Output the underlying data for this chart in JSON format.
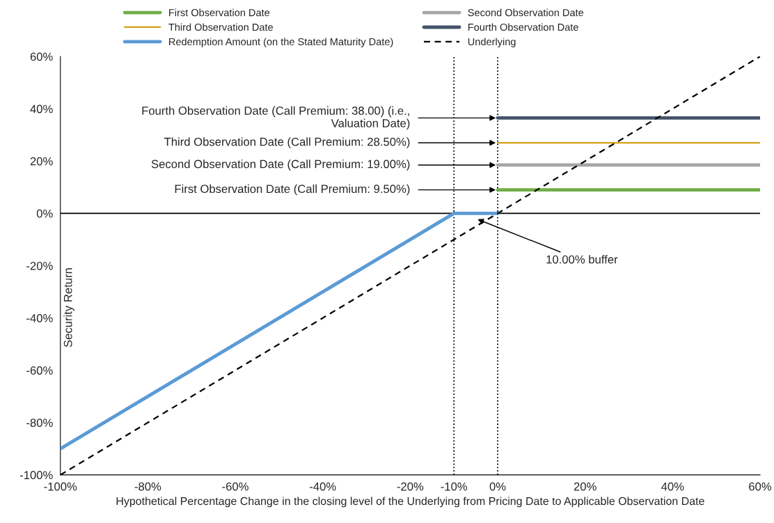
{
  "chart_data": {
    "type": "line",
    "xlabel": "Hypothetical Percentage Change in the closing level of the Underlying from Pricing Date to Applicable Observation Date",
    "ylabel": "Security Return",
    "xlim": [
      -100,
      60
    ],
    "ylim": [
      -100,
      60
    ],
    "xticks": [
      {
        "value": -100,
        "label": "-100%"
      },
      {
        "value": -80,
        "label": "-80%"
      },
      {
        "value": -60,
        "label": "-60%"
      },
      {
        "value": -40,
        "label": "-40%"
      },
      {
        "value": -20,
        "label": "-20%"
      },
      {
        "value": -10,
        "label": "-10%"
      },
      {
        "value": 0,
        "label": "0%"
      },
      {
        "value": 20,
        "label": "20%"
      },
      {
        "value": 40,
        "label": "40%"
      },
      {
        "value": 60,
        "label": "60%"
      }
    ],
    "yticks": [
      {
        "value": -100,
        "label": "-100%"
      },
      {
        "value": -80,
        "label": "-80%"
      },
      {
        "value": -60,
        "label": "-60%"
      },
      {
        "value": -40,
        "label": "-40%"
      },
      {
        "value": -20,
        "label": "-20%"
      },
      {
        "value": 0,
        "label": "0%"
      },
      {
        "value": 20,
        "label": "20%"
      },
      {
        "value": 40,
        "label": "40%"
      },
      {
        "value": 60,
        "label": "60%"
      }
    ],
    "series": [
      {
        "name": "First Observation Date",
        "color": "#70ad47",
        "x": [
          0,
          60
        ],
        "values": [
          9,
          9
        ]
      },
      {
        "name": "Second Observation Date",
        "color": "#a5a5a5",
        "x": [
          0,
          60
        ],
        "values": [
          18.5,
          18.5
        ]
      },
      {
        "name": "Third Observation Date",
        "color": "#d4a017",
        "x": [
          0,
          60
        ],
        "values": [
          27,
          27
        ]
      },
      {
        "name": "Fourth Observation Date",
        "color": "#44546a",
        "x": [
          0,
          60
        ],
        "values": [
          36.5,
          36.5
        ]
      },
      {
        "name": "Redemption Amount (on the Stated Maturity Date)",
        "color": "#5b9bd5",
        "x": [
          -100,
          -10,
          0
        ],
        "values": [
          -90,
          0,
          0
        ]
      },
      {
        "name": "Underlying",
        "color": "#000000",
        "line_style": "dashed",
        "x": [
          -100,
          60
        ],
        "values": [
          -100,
          60
        ]
      }
    ],
    "ref_lines": [
      {
        "axis": "x",
        "value": -10,
        "color": "#000000",
        "line_style": "dotted"
      },
      {
        "axis": "x",
        "value": 0,
        "color": "#000000",
        "line_style": "dotted"
      },
      {
        "axis": "y",
        "value": 0,
        "color": "#000000",
        "line_style": "solid"
      }
    ],
    "annotations": [
      "Fourth Observation Date (Call Premium: 38.00) (i.e.,\nValuation Date)",
      "Third Observation Date (Call Premium: 28.50%)",
      "Second Observation Date (Call Premium: 19.00%)",
      "First Observation Date (Call Premium: 9.50%)",
      "10.00% buffer"
    ],
    "legend": "top",
    "grid": false
  }
}
